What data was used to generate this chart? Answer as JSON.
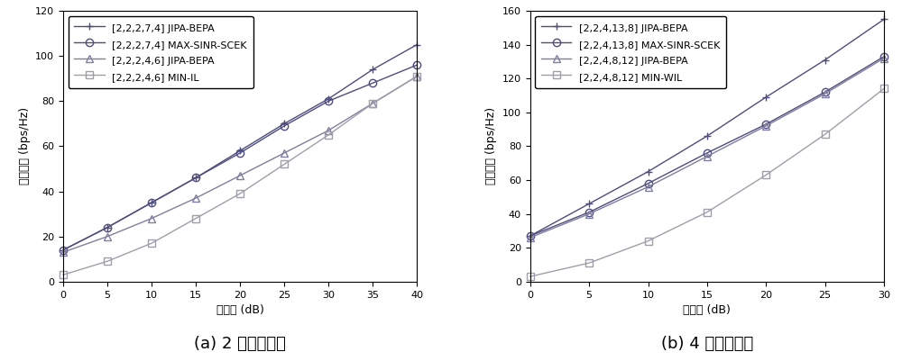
{
  "left": {
    "x": [
      0,
      5,
      10,
      15,
      20,
      25,
      30,
      35,
      40
    ],
    "series": [
      {
        "label": "[2,2,2,7,4] JIPA-BEPA",
        "marker": "+",
        "color": "#4d4d7f",
        "y": [
          14,
          24,
          35,
          46,
          58,
          70,
          81,
          94,
          105
        ]
      },
      {
        "label": "[2,2,2,7,4] MAX-SINR-SCEK",
        "marker": "o",
        "color": "#4d4d7f",
        "y": [
          14,
          24,
          35,
          46,
          57,
          69,
          80,
          88,
          96
        ]
      },
      {
        "label": "[2,2,2,4,6] JIPA-BEPA",
        "marker": "^",
        "color": "#7f7f9f",
        "y": [
          13,
          20,
          28,
          37,
          47,
          57,
          67,
          79,
          91
        ]
      },
      {
        "label": "[2,2,2,4,6] MIN-IL",
        "marker": "s",
        "color": "#9f9faa",
        "y": [
          3,
          9,
          17,
          28,
          39,
          52,
          65,
          79,
          91
        ]
      }
    ],
    "xlabel": "信噪比 (dB)",
    "ylabel": "系统容量 (bps/Hz)",
    "ylim": [
      0,
      120
    ],
    "xlim": [
      0,
      40
    ],
    "xticks": [
      0,
      5,
      10,
      15,
      20,
      25,
      30,
      35,
      40
    ],
    "yticks": [
      0,
      20,
      40,
      60,
      80,
      100,
      120
    ],
    "caption": "(a) 2 个自由度时"
  },
  "right": {
    "x": [
      0,
      5,
      10,
      15,
      20,
      25,
      30
    ],
    "series": [
      {
        "label": "[2,2,4,13,8] JIPA-BEPA",
        "marker": "+",
        "color": "#4d4d7f",
        "y": [
          27,
          46,
          65,
          86,
          109,
          131,
          155
        ]
      },
      {
        "label": "[2,2,4,13,8] MAX-SINR-SCEK",
        "marker": "o",
        "color": "#4d4d7f",
        "y": [
          27,
          41,
          58,
          76,
          93,
          112,
          133
        ]
      },
      {
        "label": "[2,2,4,8,12] JIPA-BEPA",
        "marker": "^",
        "color": "#7f7f9f",
        "y": [
          26,
          40,
          56,
          74,
          92,
          111,
          132
        ]
      },
      {
        "label": "[2,2,4,8,12] MIN-WIL",
        "marker": "s",
        "color": "#9f9faa",
        "y": [
          3,
          11,
          24,
          41,
          63,
          87,
          114
        ]
      }
    ],
    "xlabel": "信噪比 (dB)",
    "ylabel": "系统容量 (bps/Hz)",
    "ylim": [
      0,
      160
    ],
    "xlim": [
      0,
      30
    ],
    "xticks": [
      0,
      5,
      10,
      15,
      20,
      25,
      30
    ],
    "yticks": [
      0,
      20,
      40,
      60,
      80,
      100,
      120,
      140,
      160
    ],
    "caption": "(b) 4 个自由度时"
  },
  "markersize": 6,
  "linewidth": 1.0,
  "legend_fontsize": 8,
  "axis_fontsize": 9,
  "tick_fontsize": 8,
  "caption_fontsize": 13
}
